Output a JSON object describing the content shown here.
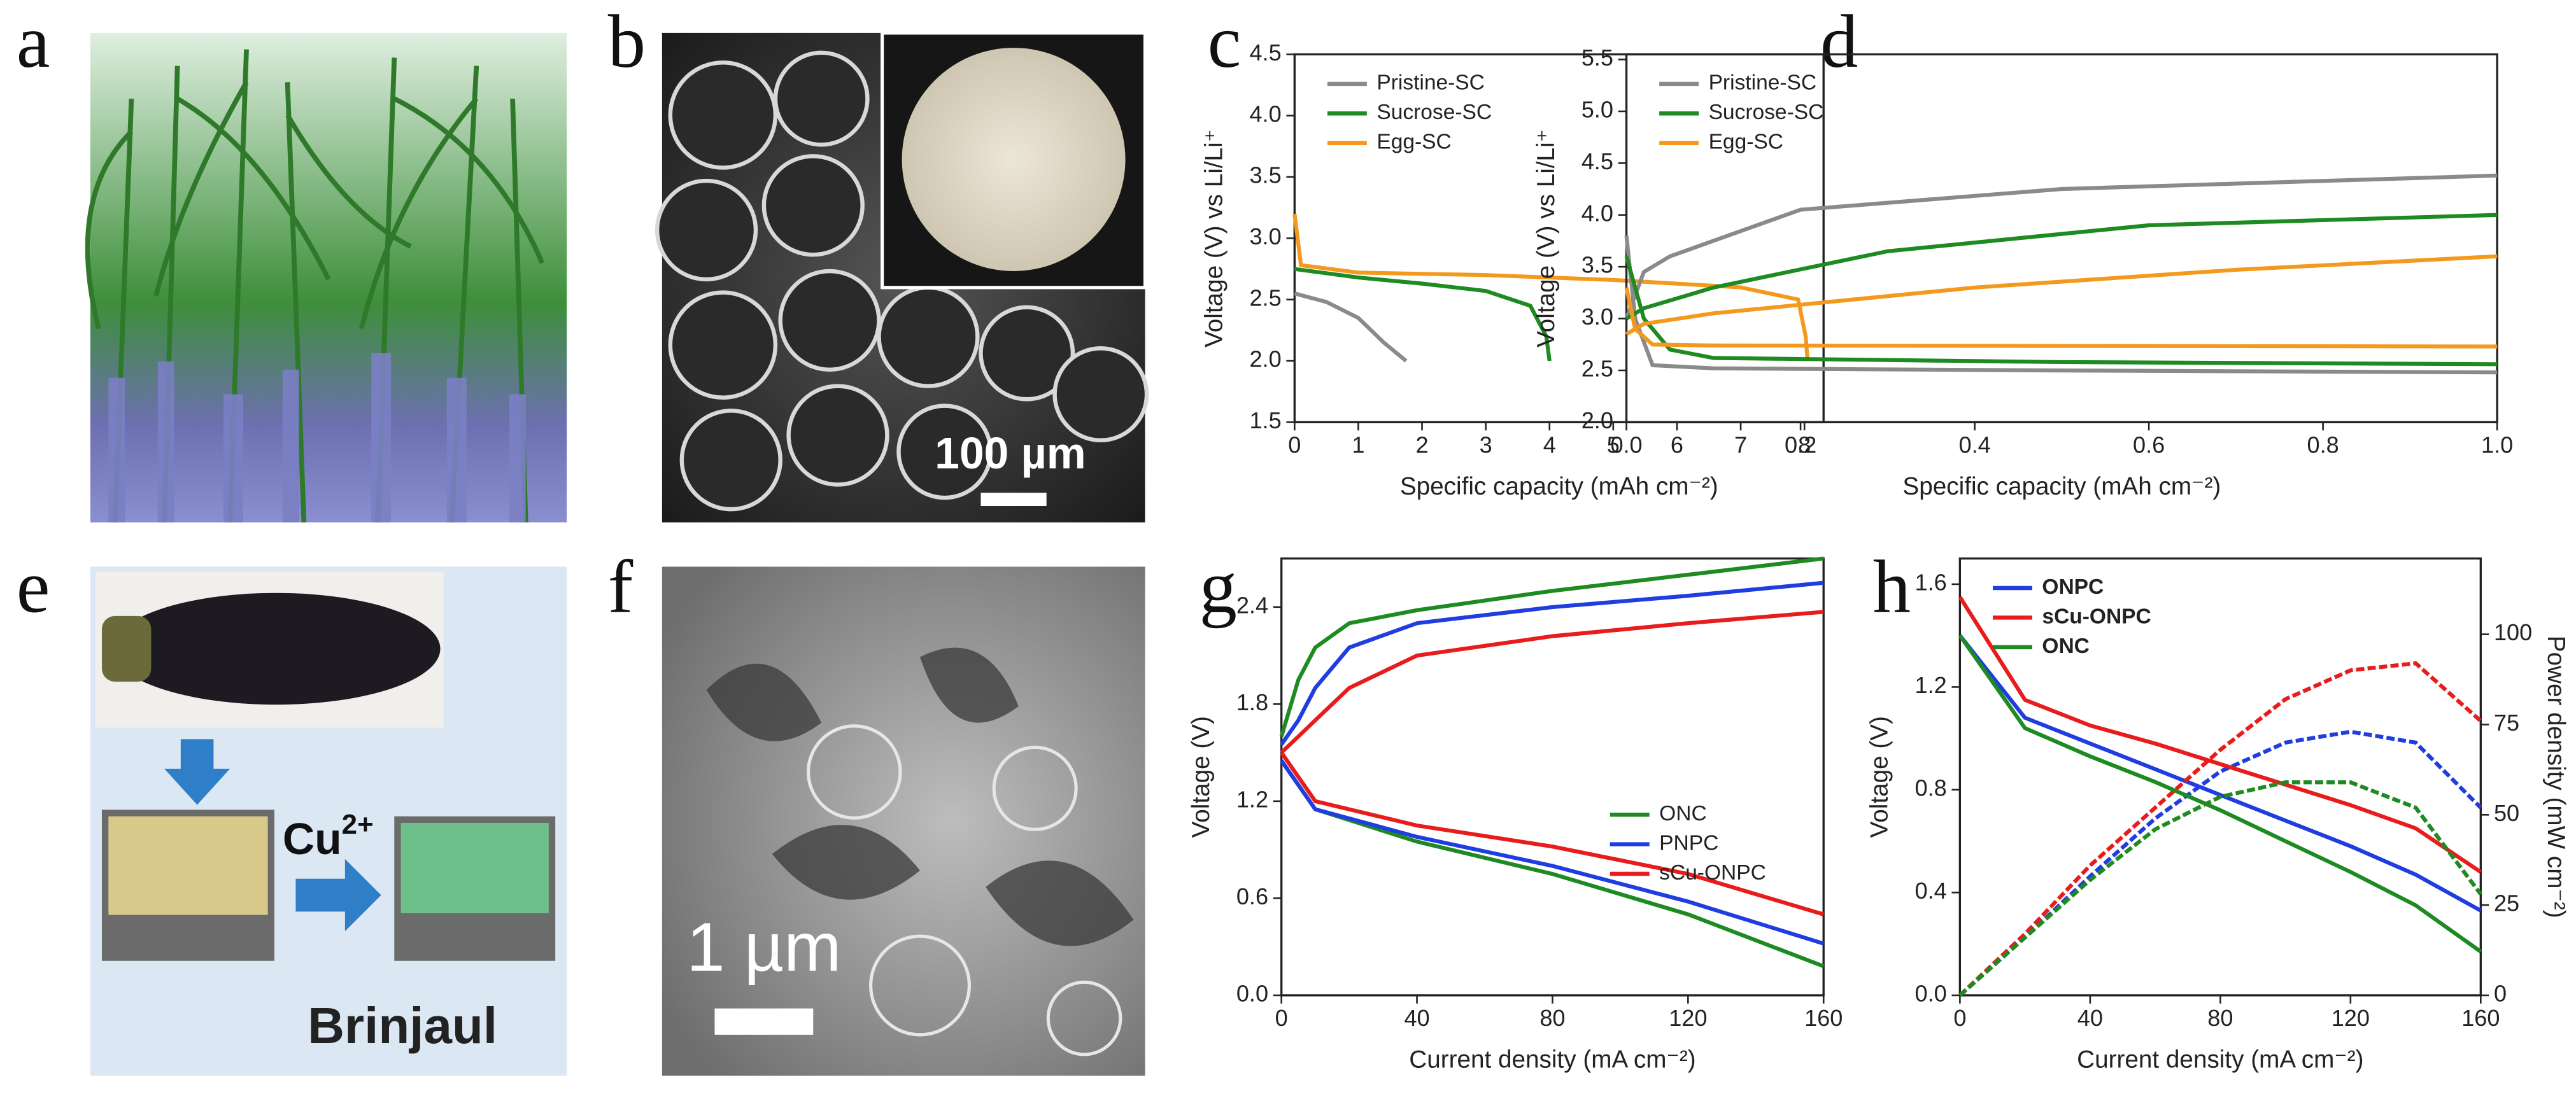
{
  "panels": [
    "a",
    "b",
    "c",
    "d",
    "e",
    "f",
    "g",
    "h"
  ],
  "images": {
    "b_scale": "100 µm",
    "f_scale": "1 µm",
    "e_ion": "Cu",
    "e_charge": "2+",
    "e_name": "Brinjaul"
  },
  "chart_data": [
    {
      "type": "line",
      "x_label": "Specific capacity (mAh cm⁻²)",
      "y_label": "Voltage (V) vs Li/Li⁺",
      "legend": "upper left",
      "xlim": [
        0,
        8.3
      ],
      "xticks": [
        0,
        1,
        2,
        3,
        4,
        5,
        6,
        7,
        8
      ],
      "ylim": [
        1.5,
        4.5
      ],
      "yticks": [
        1.5,
        {
          "value": 2,
          "label": "2.0"
        },
        2.5,
        {
          "value": 3,
          "label": "3.0"
        },
        3.5,
        {
          "value": 4,
          "label": "4.0"
        },
        4.5
      ],
      "series": [
        {
          "name": "Pristine-SC",
          "color": "#8a8a8a",
          "x": [
            0,
            0.5,
            1,
            1.4,
            1.75
          ],
          "values": [
            2.55,
            2.48,
            2.35,
            2.15,
            2.0
          ]
        },
        {
          "name": "Sucrose-SC",
          "color": "#1e8a22",
          "x": [
            0,
            1,
            2,
            3,
            3.7,
            3.95,
            4.0
          ],
          "values": [
            2.75,
            2.68,
            2.63,
            2.57,
            2.45,
            2.2,
            2.0
          ]
        },
        {
          "name": "Egg-SC",
          "color": "#f39a1e",
          "x": [
            0,
            0.1,
            1,
            3,
            5,
            7,
            7.9,
            8.02,
            8.05
          ],
          "values": [
            3.2,
            2.78,
            2.72,
            2.7,
            2.66,
            2.6,
            2.5,
            2.2,
            2.0
          ]
        }
      ]
    },
    {
      "type": "line",
      "x_label": "Specific capacity (mAh cm⁻²)",
      "y_label": "Voltage (V) vs Li/Li⁺",
      "legend": "upper left",
      "xlim": [
        0,
        1
      ],
      "xticks": [
        {
          "value": 0,
          "label": "0.0"
        },
        0.2,
        0.4,
        0.6,
        0.8,
        {
          "value": 1,
          "label": "1.0"
        }
      ],
      "ylim": [
        2,
        5.55
      ],
      "yticks": [
        {
          "value": 2,
          "label": "2.0"
        },
        2.5,
        {
          "value": 3,
          "label": "3.0"
        },
        3.5,
        {
          "value": 4,
          "label": "4.0"
        },
        4.5,
        {
          "value": 5,
          "label": "5.0"
        },
        5.5
      ],
      "series": [
        {
          "name": "Pristine-SC",
          "color": "#8a8a8a",
          "x": [
            0,
            0.02,
            0.05,
            0.2,
            0.5,
            1,
            null,
            0,
            0.01,
            0.03,
            0.1,
            0.5,
            1
          ],
          "values": [
            3.0,
            3.45,
            3.6,
            4.05,
            4.25,
            4.38,
            null,
            3.8,
            3.0,
            2.55,
            2.52,
            2.5,
            2.48
          ]
        },
        {
          "name": "Sucrose-SC",
          "color": "#1e8a22",
          "x": [
            0,
            0.02,
            0.1,
            0.3,
            0.6,
            1,
            null,
            0,
            0.02,
            0.05,
            0.1,
            0.5,
            1
          ],
          "values": [
            3.0,
            3.1,
            3.3,
            3.65,
            3.9,
            4.0,
            null,
            3.6,
            3.0,
            2.7,
            2.62,
            2.58,
            2.56
          ]
        },
        {
          "name": "Egg-SC",
          "color": "#f39a1e",
          "x": [
            0,
            0.02,
            0.1,
            0.4,
            0.7,
            1,
            null,
            0,
            0.01,
            0.03,
            0.1,
            1
          ],
          "values": [
            2.85,
            2.95,
            3.05,
            3.3,
            3.47,
            3.6,
            null,
            3.3,
            2.9,
            2.75,
            2.74,
            2.73
          ]
        }
      ]
    },
    {
      "type": "line",
      "x_label": "Current density (mA cm⁻²)",
      "y_label": "Voltage (V)",
      "legend": "lower right",
      "xlim": [
        0,
        160
      ],
      "xticks": [
        0,
        40,
        80,
        120,
        160
      ],
      "ylim": [
        0,
        2.7
      ],
      "yticks": [
        {
          "value": 0,
          "label": "0.0"
        },
        0.6,
        1.2,
        1.8,
        2.4
      ],
      "series": [
        {
          "name": "ONC",
          "color": "#1e8a22",
          "x": [
            0,
            5,
            10,
            20,
            40,
            80,
            120,
            160,
            null,
            0,
            10,
            40,
            80,
            120,
            160
          ],
          "values": [
            1.6,
            1.95,
            2.15,
            2.3,
            2.38,
            2.5,
            2.6,
            2.7,
            null,
            1.45,
            1.15,
            0.95,
            0.75,
            0.5,
            0.18
          ]
        },
        {
          "name": "PNPC",
          "color": "#1f3de0",
          "x": [
            0,
            5,
            10,
            20,
            40,
            80,
            120,
            160,
            null,
            0,
            10,
            40,
            80,
            120,
            160
          ],
          "values": [
            1.55,
            1.7,
            1.9,
            2.15,
            2.3,
            2.4,
            2.47,
            2.55,
            null,
            1.45,
            1.15,
            0.98,
            0.8,
            0.58,
            0.32
          ]
        },
        {
          "name": "sCu-ONPC",
          "color": "#e81c1c",
          "x": [
            0,
            5,
            10,
            20,
            40,
            80,
            120,
            160,
            null,
            0,
            10,
            40,
            80,
            120,
            160
          ],
          "values": [
            1.5,
            1.6,
            1.7,
            1.9,
            2.1,
            2.22,
            2.3,
            2.37,
            null,
            1.5,
            1.2,
            1.05,
            0.92,
            0.75,
            0.5
          ]
        }
      ]
    },
    {
      "type": "line",
      "x_label": "Current density (mA cm⁻²)",
      "y_label": "Voltage (V)",
      "y2_label": "Power density (mW cm⁻²)",
      "legend": "upper left",
      "xlim": [
        0,
        160
      ],
      "xticks": [
        0,
        40,
        80,
        120,
        160
      ],
      "ylim": [
        0,
        1.7
      ],
      "yticks": [
        {
          "value": 0,
          "label": "0.0"
        },
        0.4,
        0.8,
        1.2,
        1.6
      ],
      "y2lim": [
        0,
        121
      ],
      "y2ticks": [
        0,
        25,
        50,
        75,
        100
      ],
      "series": [
        {
          "name": "ONPC",
          "color": "#1f3de0",
          "x": [
            0,
            20,
            40,
            60,
            80,
            100,
            120,
            140,
            160
          ],
          "values": [
            1.4,
            1.08,
            0.98,
            0.88,
            0.78,
            0.68,
            0.58,
            0.47,
            0.33
          ],
          "power": [
            0,
            16,
            33,
            49,
            62,
            70,
            73,
            70,
            52
          ],
          "axis": "y2"
        },
        {
          "name": "sCu-ONPC",
          "color": "#e81c1c",
          "x": [
            0,
            20,
            40,
            60,
            80,
            100,
            120,
            140,
            160
          ],
          "values": [
            1.55,
            1.15,
            1.05,
            0.98,
            0.9,
            0.82,
            0.74,
            0.65,
            0.48
          ],
          "power": [
            0,
            17,
            36,
            52,
            68,
            82,
            90,
            92,
            76
          ],
          "axis": "y2"
        },
        {
          "name": "ONC",
          "color": "#1e8a22",
          "x": [
            0,
            20,
            40,
            60,
            80,
            100,
            120,
            140,
            160
          ],
          "values": [
            1.4,
            1.04,
            0.93,
            0.83,
            0.72,
            0.6,
            0.48,
            0.35,
            0.17
          ],
          "power": [
            0,
            16,
            32,
            46,
            55,
            59,
            59,
            52,
            28
          ],
          "axis": "y2"
        }
      ]
    }
  ]
}
